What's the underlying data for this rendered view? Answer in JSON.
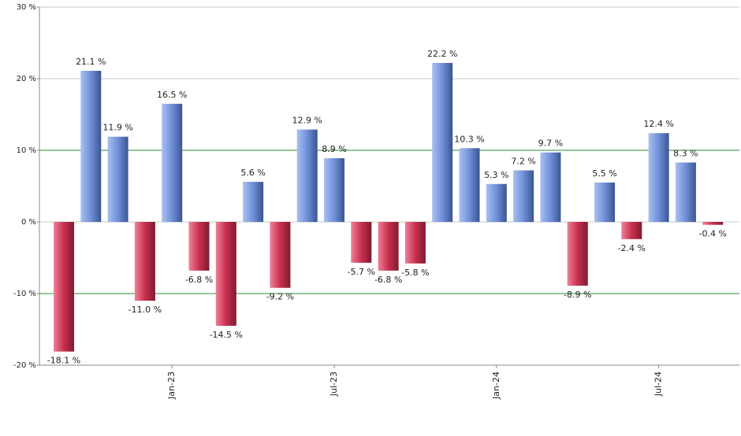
{
  "chart_data": {
    "type": "bar",
    "categories": [
      null,
      null,
      null,
      null,
      "Jan-23",
      null,
      null,
      null,
      null,
      null,
      "Jul-23",
      null,
      null,
      null,
      null,
      null,
      "Jan-24",
      null,
      null,
      null,
      null,
      null,
      "Jul-24",
      null,
      null
    ],
    "values": [
      -18.1,
      21.1,
      11.9,
      -11.0,
      16.5,
      -6.8,
      -14.5,
      5.6,
      -9.2,
      12.9,
      8.9,
      -5.7,
      -6.8,
      -5.8,
      22.2,
      10.3,
      5.3,
      7.2,
      9.7,
      -8.9,
      5.5,
      -2.4,
      12.4,
      8.3,
      -0.4
    ],
    "value_labels": [
      "-18.1 %",
      "21.1 %",
      "11.9 %",
      "-11.0 %",
      "16.5 %",
      "-6.8 %",
      "-14.5 %",
      "5.6 %",
      "-9.2 %",
      "12.9 %",
      "8.9 %",
      "-5.7 %",
      "-6.8 %",
      "-5.8 %",
      "22.2 %",
      "10.3 %",
      "5.3 %",
      "7.2 %",
      "9.7 %",
      "-8.9 %",
      "5.5 %",
      "-2.4 %",
      "12.4 %",
      "8.3 %",
      "-0.4 %"
    ],
    "positive_color": "#6f8fd8",
    "negative_color": "#c8304f",
    "ylim": [
      -20,
      30
    ],
    "yticks": [
      {
        "value": -20,
        "label": "-20 %"
      },
      {
        "value": -10,
        "label": "-10 %"
      },
      {
        "value": 0,
        "label": "0 %"
      },
      {
        "value": 10,
        "label": "10 %"
      },
      {
        "value": 20,
        "label": "20 %"
      },
      {
        "value": 30,
        "label": "30 %"
      }
    ],
    "grid": true,
    "grid_colors": [
      "#c8c8c8",
      "#2e8b2e",
      "#c8c8c8",
      "#2e8b2e",
      "#c8c8c8",
      "#c8c8c8"
    ]
  }
}
